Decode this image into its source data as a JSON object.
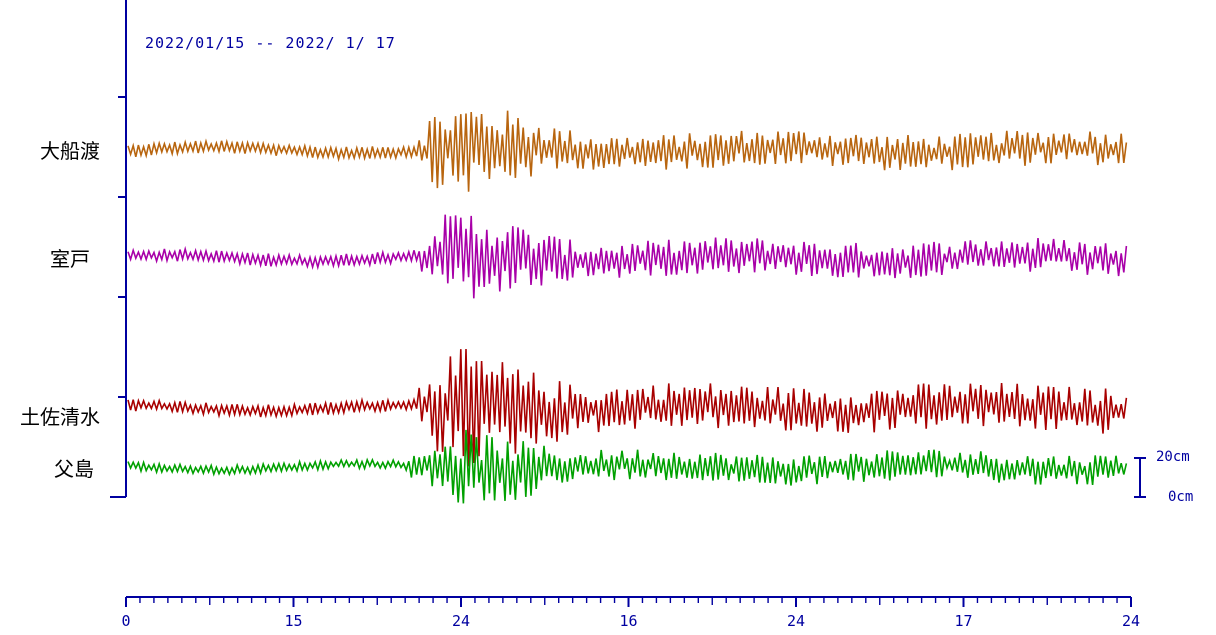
{
  "chart_data": {
    "type": "line",
    "title": "2022/01/15 -- 2022/ 1/ 17",
    "x_tick_labels": [
      "0",
      "15",
      "24",
      "16",
      "24",
      "17",
      "24"
    ],
    "scale_labels": [
      "20cm",
      "0cm"
    ],
    "series": [
      {
        "name": "大船渡",
        "color": "#b8650f",
        "amplitude": 14,
        "quiet_amplitude": 4,
        "onset_tick": 1.75
      },
      {
        "name": "室戸",
        "color": "#a800a8",
        "amplitude": 14,
        "quiet_amplitude": 4,
        "onset_tick": 1.75
      },
      {
        "name": "土佐清水",
        "color": "#a80000",
        "amplitude": 18,
        "quiet_amplitude": 4,
        "onset_tick": 1.75
      },
      {
        "name": "父島",
        "color": "#00a000",
        "amplitude": 12,
        "quiet_amplitude": 3,
        "onset_tick": 1.7
      }
    ],
    "grid": false,
    "legend": "left"
  },
  "colors": {
    "axis": "#0000a0",
    "text": "#000000"
  }
}
